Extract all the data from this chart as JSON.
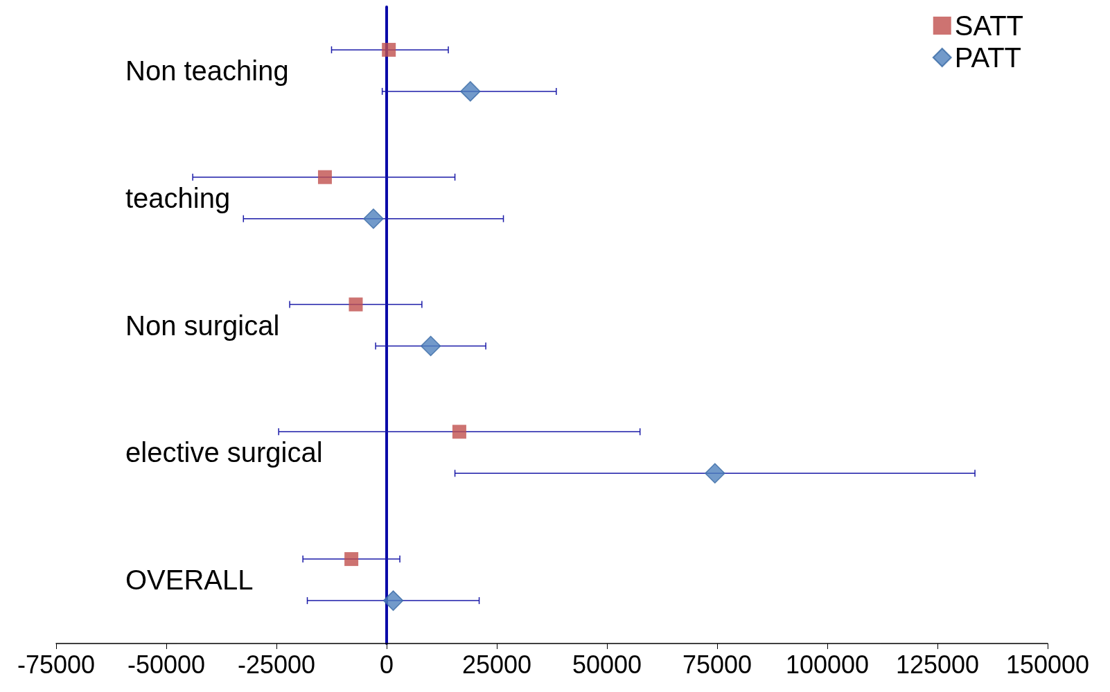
{
  "chart_data": {
    "type": "scatter",
    "orientation": "horizontal",
    "categories": [
      "Non teaching",
      "teaching",
      "Non surgical",
      "elective surgical",
      "OVERALL"
    ],
    "series": [
      {
        "name": "SATT",
        "color": "#c0504d",
        "marker": "square",
        "values": [
          500,
          -14000,
          -7000,
          16500,
          -8000
        ],
        "errors": [
          [
            -12500,
            14000
          ],
          [
            -44000,
            15500
          ],
          [
            -22000,
            8000
          ],
          [
            -24500,
            57500
          ],
          [
            -19000,
            3000
          ]
        ]
      },
      {
        "name": "PATT",
        "color": "#4f81bd",
        "marker": "diamond",
        "values": [
          19000,
          -3000,
          10000,
          74500,
          1500
        ],
        "errors": [
          [
            -1000,
            38500
          ],
          [
            -32500,
            26500
          ],
          [
            -2500,
            22500
          ],
          [
            15500,
            133500
          ],
          [
            -18000,
            21000
          ]
        ]
      }
    ],
    "xlim": [
      -75000,
      150000
    ],
    "xticks": [
      -75000,
      -50000,
      -25000,
      0,
      25000,
      50000,
      75000,
      100000,
      125000,
      150000
    ],
    "grid": false,
    "legend": "top right"
  }
}
